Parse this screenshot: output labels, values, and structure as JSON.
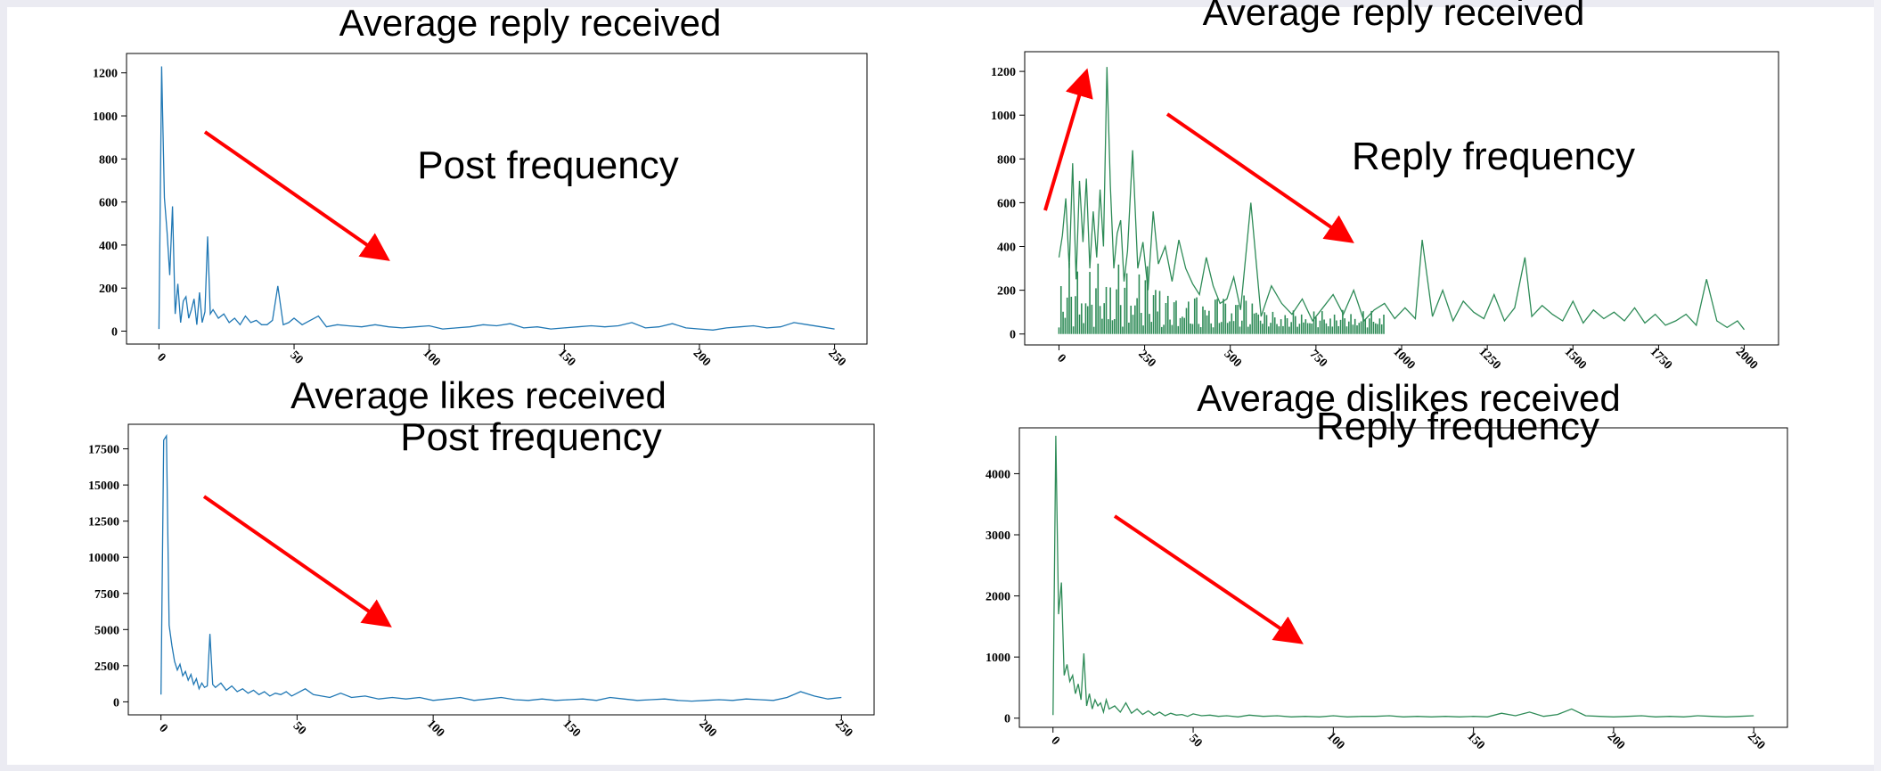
{
  "chart_data": [
    {
      "type": "line",
      "title": "Average reply received",
      "annotation": "Post frequency",
      "xlabel": "",
      "ylabel": "",
      "xlim": [
        -12,
        262
      ],
      "ylim": [
        -60,
        1290
      ],
      "xticks": [
        0,
        50,
        100,
        150,
        200,
        250
      ],
      "yticks": [
        0,
        200,
        400,
        600,
        800,
        1000,
        1200
      ],
      "grid": false,
      "color": "#1f77b4",
      "trend_arrows": [
        "down"
      ],
      "series": [
        {
          "x": [
            0,
            1,
            2,
            3,
            4,
            5,
            6,
            7,
            8,
            9,
            10,
            11,
            12,
            13,
            14,
            15,
            16,
            17,
            18,
            19,
            20,
            22,
            24,
            26,
            28,
            30,
            32,
            34,
            36,
            38,
            40,
            42,
            44,
            46,
            48,
            50,
            53,
            56,
            59,
            62,
            66,
            70,
            75,
            80,
            85,
            90,
            95,
            100,
            105,
            110,
            115,
            120,
            125,
            130,
            135,
            140,
            145,
            150,
            155,
            160,
            165,
            170,
            175,
            180,
            185,
            190,
            195,
            200,
            205,
            210,
            215,
            220,
            225,
            230,
            235,
            240,
            245,
            250
          ],
          "y": [
            10,
            1230,
            620,
            460,
            260,
            580,
            80,
            220,
            40,
            140,
            160,
            60,
            100,
            150,
            30,
            180,
            40,
            90,
            440,
            80,
            100,
            60,
            80,
            40,
            60,
            30,
            70,
            40,
            50,
            30,
            30,
            50,
            210,
            30,
            40,
            60,
            30,
            50,
            70,
            20,
            30,
            25,
            20,
            30,
            20,
            15,
            20,
            25,
            10,
            15,
            20,
            30,
            25,
            35,
            15,
            20,
            10,
            15,
            20,
            25,
            20,
            25,
            40,
            15,
            20,
            35,
            15,
            10,
            5,
            15,
            20,
            25,
            15,
            20,
            40,
            30,
            20,
            10
          ]
        }
      ]
    },
    {
      "type": "line",
      "title": "Average reply received",
      "annotation": "Reply frequency",
      "xlabel": "",
      "ylabel": "",
      "xlim": [
        -100,
        2100
      ],
      "ylim": [
        -50,
        1290
      ],
      "xticks": [
        0,
        250,
        500,
        750,
        1000,
        1250,
        1500,
        1750,
        2000
      ],
      "yticks": [
        0,
        200,
        400,
        600,
        800,
        1000,
        1200
      ],
      "grid": false,
      "color": "#2e8b57",
      "trend_arrows": [
        "up",
        "down"
      ],
      "series": [
        {
          "x": [
            0,
            10,
            20,
            30,
            40,
            50,
            60,
            70,
            80,
            90,
            100,
            110,
            120,
            130,
            140,
            150,
            160,
            170,
            180,
            190,
            200,
            215,
            230,
            245,
            260,
            275,
            290,
            310,
            330,
            350,
            370,
            390,
            410,
            430,
            450,
            470,
            490,
            510,
            530,
            560,
            590,
            620,
            650,
            680,
            710,
            740,
            770,
            800,
            830,
            860,
            890,
            920,
            950,
            980,
            1010,
            1040,
            1060,
            1090,
            1120,
            1150,
            1180,
            1210,
            1240,
            1270,
            1300,
            1330,
            1360,
            1380,
            1410,
            1440,
            1470,
            1500,
            1530,
            1560,
            1590,
            1620,
            1650,
            1680,
            1710,
            1740,
            1770,
            1800,
            1830,
            1860,
            1890,
            1920,
            1950,
            1980,
            2000
          ],
          "y": [
            350,
            450,
            620,
            300,
            780,
            250,
            700,
            420,
            710,
            300,
            560,
            350,
            660,
            400,
            1220,
            680,
            300,
            460,
            520,
            240,
            380,
            840,
            300,
            420,
            200,
            560,
            320,
            400,
            240,
            430,
            300,
            230,
            180,
            350,
            220,
            140,
            160,
            260,
            110,
            600,
            80,
            220,
            140,
            90,
            160,
            60,
            120,
            180,
            90,
            200,
            60,
            110,
            140,
            70,
            120,
            70,
            430,
            80,
            200,
            60,
            150,
            100,
            70,
            180,
            60,
            120,
            350,
            80,
            130,
            90,
            60,
            150,
            50,
            110,
            70,
            100,
            60,
            120,
            50,
            90,
            40,
            60,
            90,
            40,
            250,
            60,
            30,
            60,
            20
          ]
        }
      ]
    },
    {
      "type": "line",
      "title": "Average likes received",
      "annotation": "Post frequency",
      "xlabel": "",
      "ylabel": "",
      "xlim": [
        -12,
        262
      ],
      "ylim": [
        -900,
        19200
      ],
      "xticks": [
        0,
        50,
        100,
        150,
        200,
        250
      ],
      "yticks": [
        0,
        2500,
        5000,
        7500,
        10000,
        12500,
        15000,
        17500
      ],
      "grid": false,
      "color": "#1f77b4",
      "trend_arrows": [
        "down"
      ],
      "series": [
        {
          "x": [
            0,
            1,
            2,
            3,
            4,
            5,
            6,
            7,
            8,
            9,
            10,
            11,
            12,
            13,
            14,
            15,
            16,
            17,
            18,
            19,
            20,
            22,
            24,
            26,
            28,
            30,
            32,
            34,
            36,
            38,
            40,
            42,
            44,
            46,
            48,
            50,
            53,
            56,
            59,
            62,
            66,
            70,
            75,
            80,
            85,
            90,
            95,
            100,
            105,
            110,
            115,
            120,
            125,
            130,
            135,
            140,
            145,
            150,
            155,
            160,
            165,
            170,
            175,
            180,
            185,
            190,
            195,
            200,
            205,
            210,
            215,
            220,
            225,
            230,
            235,
            240,
            245,
            250
          ],
          "y": [
            500,
            18100,
            18400,
            5300,
            3900,
            2800,
            2200,
            2600,
            1800,
            2100,
            1500,
            1900,
            1200,
            1600,
            900,
            1300,
            1000,
            1100,
            4700,
            1200,
            1000,
            1300,
            800,
            1100,
            700,
            900,
            600,
            800,
            500,
            700,
            400,
            600,
            500,
            700,
            400,
            600,
            900,
            500,
            400,
            300,
            600,
            300,
            400,
            200,
            300,
            200,
            300,
            100,
            200,
            300,
            100,
            200,
            300,
            150,
            100,
            200,
            100,
            150,
            200,
            100,
            300,
            200,
            100,
            150,
            200,
            100,
            50,
            100,
            150,
            100,
            200,
            150,
            100,
            300,
            700,
            400,
            200,
            300
          ]
        }
      ]
    },
    {
      "type": "line",
      "title": "Average dislikes received",
      "annotation": "Reply frequency",
      "xlabel": "",
      "ylabel": "",
      "xlim": [
        -12,
        262
      ],
      "ylim": [
        -150,
        4750
      ],
      "xticks": [
        0,
        50,
        100,
        150,
        200,
        250
      ],
      "yticks": [
        0,
        1000,
        2000,
        3000,
        4000
      ],
      "grid": false,
      "color": "#2e8b57",
      "trend_arrows": [
        "down"
      ],
      "series": [
        {
          "x": [
            0,
            1,
            2,
            3,
            4,
            5,
            6,
            7,
            8,
            9,
            10,
            11,
            12,
            13,
            14,
            15,
            16,
            17,
            18,
            19,
            20,
            22,
            24,
            26,
            28,
            30,
            32,
            34,
            36,
            38,
            40,
            42,
            44,
            46,
            48,
            50,
            53,
            56,
            59,
            62,
            66,
            70,
            75,
            80,
            85,
            90,
            95,
            100,
            105,
            110,
            115,
            120,
            125,
            130,
            135,
            140,
            145,
            150,
            155,
            160,
            165,
            170,
            175,
            180,
            185,
            190,
            195,
            200,
            205,
            210,
            215,
            220,
            225,
            230,
            235,
            240,
            245,
            250
          ],
          "y": [
            50,
            4620,
            1700,
            2220,
            700,
            880,
            600,
            700,
            400,
            560,
            300,
            1060,
            200,
            400,
            150,
            300,
            200,
            250,
            100,
            300,
            150,
            200,
            100,
            250,
            80,
            150,
            60,
            120,
            50,
            100,
            40,
            80,
            50,
            60,
            30,
            70,
            40,
            50,
            30,
            40,
            20,
            50,
            30,
            40,
            20,
            30,
            20,
            40,
            20,
            30,
            30,
            40,
            20,
            30,
            20,
            30,
            20,
            30,
            20,
            80,
            40,
            100,
            30,
            60,
            150,
            40,
            30,
            20,
            30,
            40,
            20,
            30,
            20,
            40,
            30,
            20,
            30,
            40
          ]
        }
      ]
    }
  ]
}
